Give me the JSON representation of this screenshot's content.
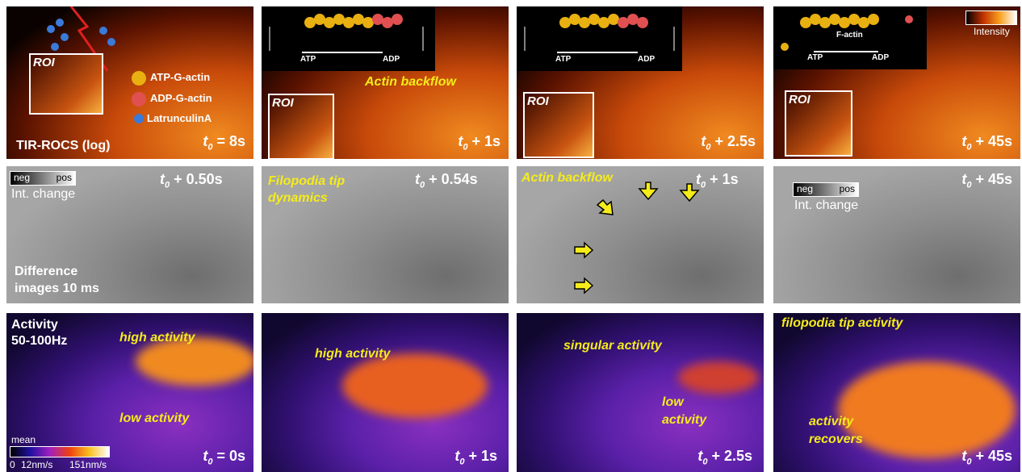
{
  "panels": [
    {
      "roi": "ROI",
      "legend": [
        "ATP-G-actin",
        "ADP-G-actin",
        "LatrunculinA"
      ],
      "title": "TIR-ROCS (log)",
      "time": {
        "t": "t",
        "sub": "0",
        "rest": " = 8s"
      }
    },
    {
      "roi": "ROI",
      "atp": "ATP",
      "adp": "ADP",
      "note": "Actin backflow",
      "time": {
        "t": "t",
        "sub": "0",
        "rest": " + 1s"
      }
    },
    {
      "roi": "ROI",
      "atp": "ATP",
      "adp": "ADP",
      "time": {
        "t": "t",
        "sub": "0",
        "rest": " + 2.5s"
      }
    },
    {
      "roi": "ROI",
      "factin": "F-actin",
      "atp": "ATP",
      "adp": "ADP",
      "colorbar": "Intensity",
      "time": {
        "t": "t",
        "sub": "0",
        "rest": " + 45s"
      }
    },
    {
      "neg": "neg",
      "pos": "pos",
      "change": "Int. change",
      "caption": [
        "Difference",
        "images 10 ms"
      ],
      "time": {
        "t": "t",
        "sub": "0",
        "rest": " + 0.50s"
      }
    },
    {
      "note": [
        "Filopodia tip",
        "dynamics"
      ],
      "time": {
        "t": "t",
        "sub": "0",
        "rest": " + 0.54s"
      }
    },
    {
      "note": "Actin backflow",
      "time": {
        "t": "t",
        "sub": "0",
        "rest": " + 1s"
      }
    },
    {
      "neg": "neg",
      "pos": "pos",
      "change": "Int. change",
      "time": {
        "t": "t",
        "sub": "0",
        "rest": " + 45s"
      }
    },
    {
      "caption": [
        "Activity",
        "50-100Hz"
      ],
      "note1": "high activity",
      "note2": "low activity",
      "scale": {
        "title": "mean",
        "ticks": [
          "0",
          "12nm/s",
          "151nm/s"
        ]
      },
      "time": {
        "t": "t",
        "sub": "0",
        "rest": " = 0s"
      }
    },
    {
      "note1": "high activity",
      "time": {
        "t": "t",
        "sub": "0",
        "rest": " + 1s"
      }
    },
    {
      "note1": "singular activity",
      "note2": [
        "low",
        "activity"
      ],
      "time": {
        "t": "t",
        "sub": "0",
        "rest": " + 2.5s"
      }
    },
    {
      "note1": "filopodia tip activity",
      "note2": [
        "activity",
        "recovers"
      ],
      "time": {
        "t": "t",
        "sub": "0",
        "rest": " + 45s"
      }
    }
  ]
}
